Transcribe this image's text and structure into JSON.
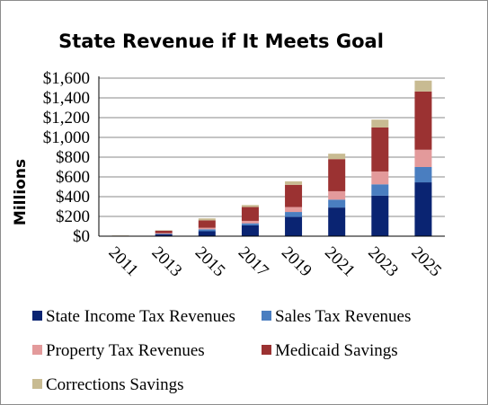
{
  "chart_data": {
    "type": "bar",
    "stacked": true,
    "title": "State Revenue if It Meets Goal",
    "ylabel": "Millions",
    "xlabel": "",
    "ylim": [
      0,
      1600
    ],
    "y_ticks": [
      "$0",
      "$200",
      "$400",
      "$600",
      "$800",
      "$1,000",
      "$1,200",
      "$1,400",
      "$1,600"
    ],
    "categories": [
      "2011",
      "2013",
      "2015",
      "2017",
      "2019",
      "2021",
      "2023",
      "2025"
    ],
    "grid": "horizontal",
    "legend_position": "bottom",
    "series": [
      {
        "name": "State Income Tax Revenues",
        "color": "#0a2472",
        "values": [
          0,
          20,
          50,
          110,
          195,
          290,
          410,
          545
        ]
      },
      {
        "name": "Sales Tax Revenues",
        "color": "#4a7ec0",
        "values": [
          0,
          5,
          20,
          20,
          50,
          80,
          115,
          155
        ]
      },
      {
        "name": "Property Tax Revenues",
        "color": "#e39a9b",
        "values": [
          0,
          5,
          15,
          25,
          50,
          85,
          130,
          175
        ]
      },
      {
        "name": "Medicaid Savings",
        "color": "#9b3232",
        "values": [
          5,
          25,
          75,
          140,
          225,
          325,
          445,
          590
        ]
      },
      {
        "name": "Corrections Savings",
        "color": "#c8bb92",
        "values": [
          2,
          5,
          20,
          20,
          35,
          55,
          80,
          110
        ]
      }
    ]
  }
}
